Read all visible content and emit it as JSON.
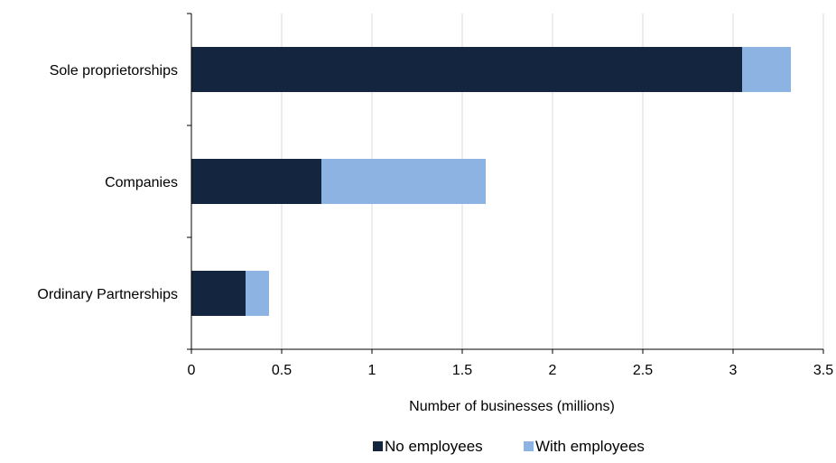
{
  "chart_data": {
    "type": "bar",
    "orientation": "horizontal",
    "stacked": true,
    "categories": [
      "Sole proprietorships",
      "Companies",
      "Ordinary Partnerships"
    ],
    "series": [
      {
        "name": "No employees",
        "color": "#14263f",
        "values": [
          3.05,
          0.72,
          0.3
        ]
      },
      {
        "name": "With employees",
        "color": "#8db3e2",
        "values": [
          0.27,
          0.91,
          0.13
        ]
      }
    ],
    "xlabel": "Number of businesses (millions)",
    "ylabel": "",
    "xlim": [
      0,
      3.5
    ],
    "xticks": [
      "0",
      "0.5",
      "1",
      "1.5",
      "2",
      "2.5",
      "3",
      "3.5"
    ],
    "grid": "vertical",
    "legend_position": "bottom"
  }
}
